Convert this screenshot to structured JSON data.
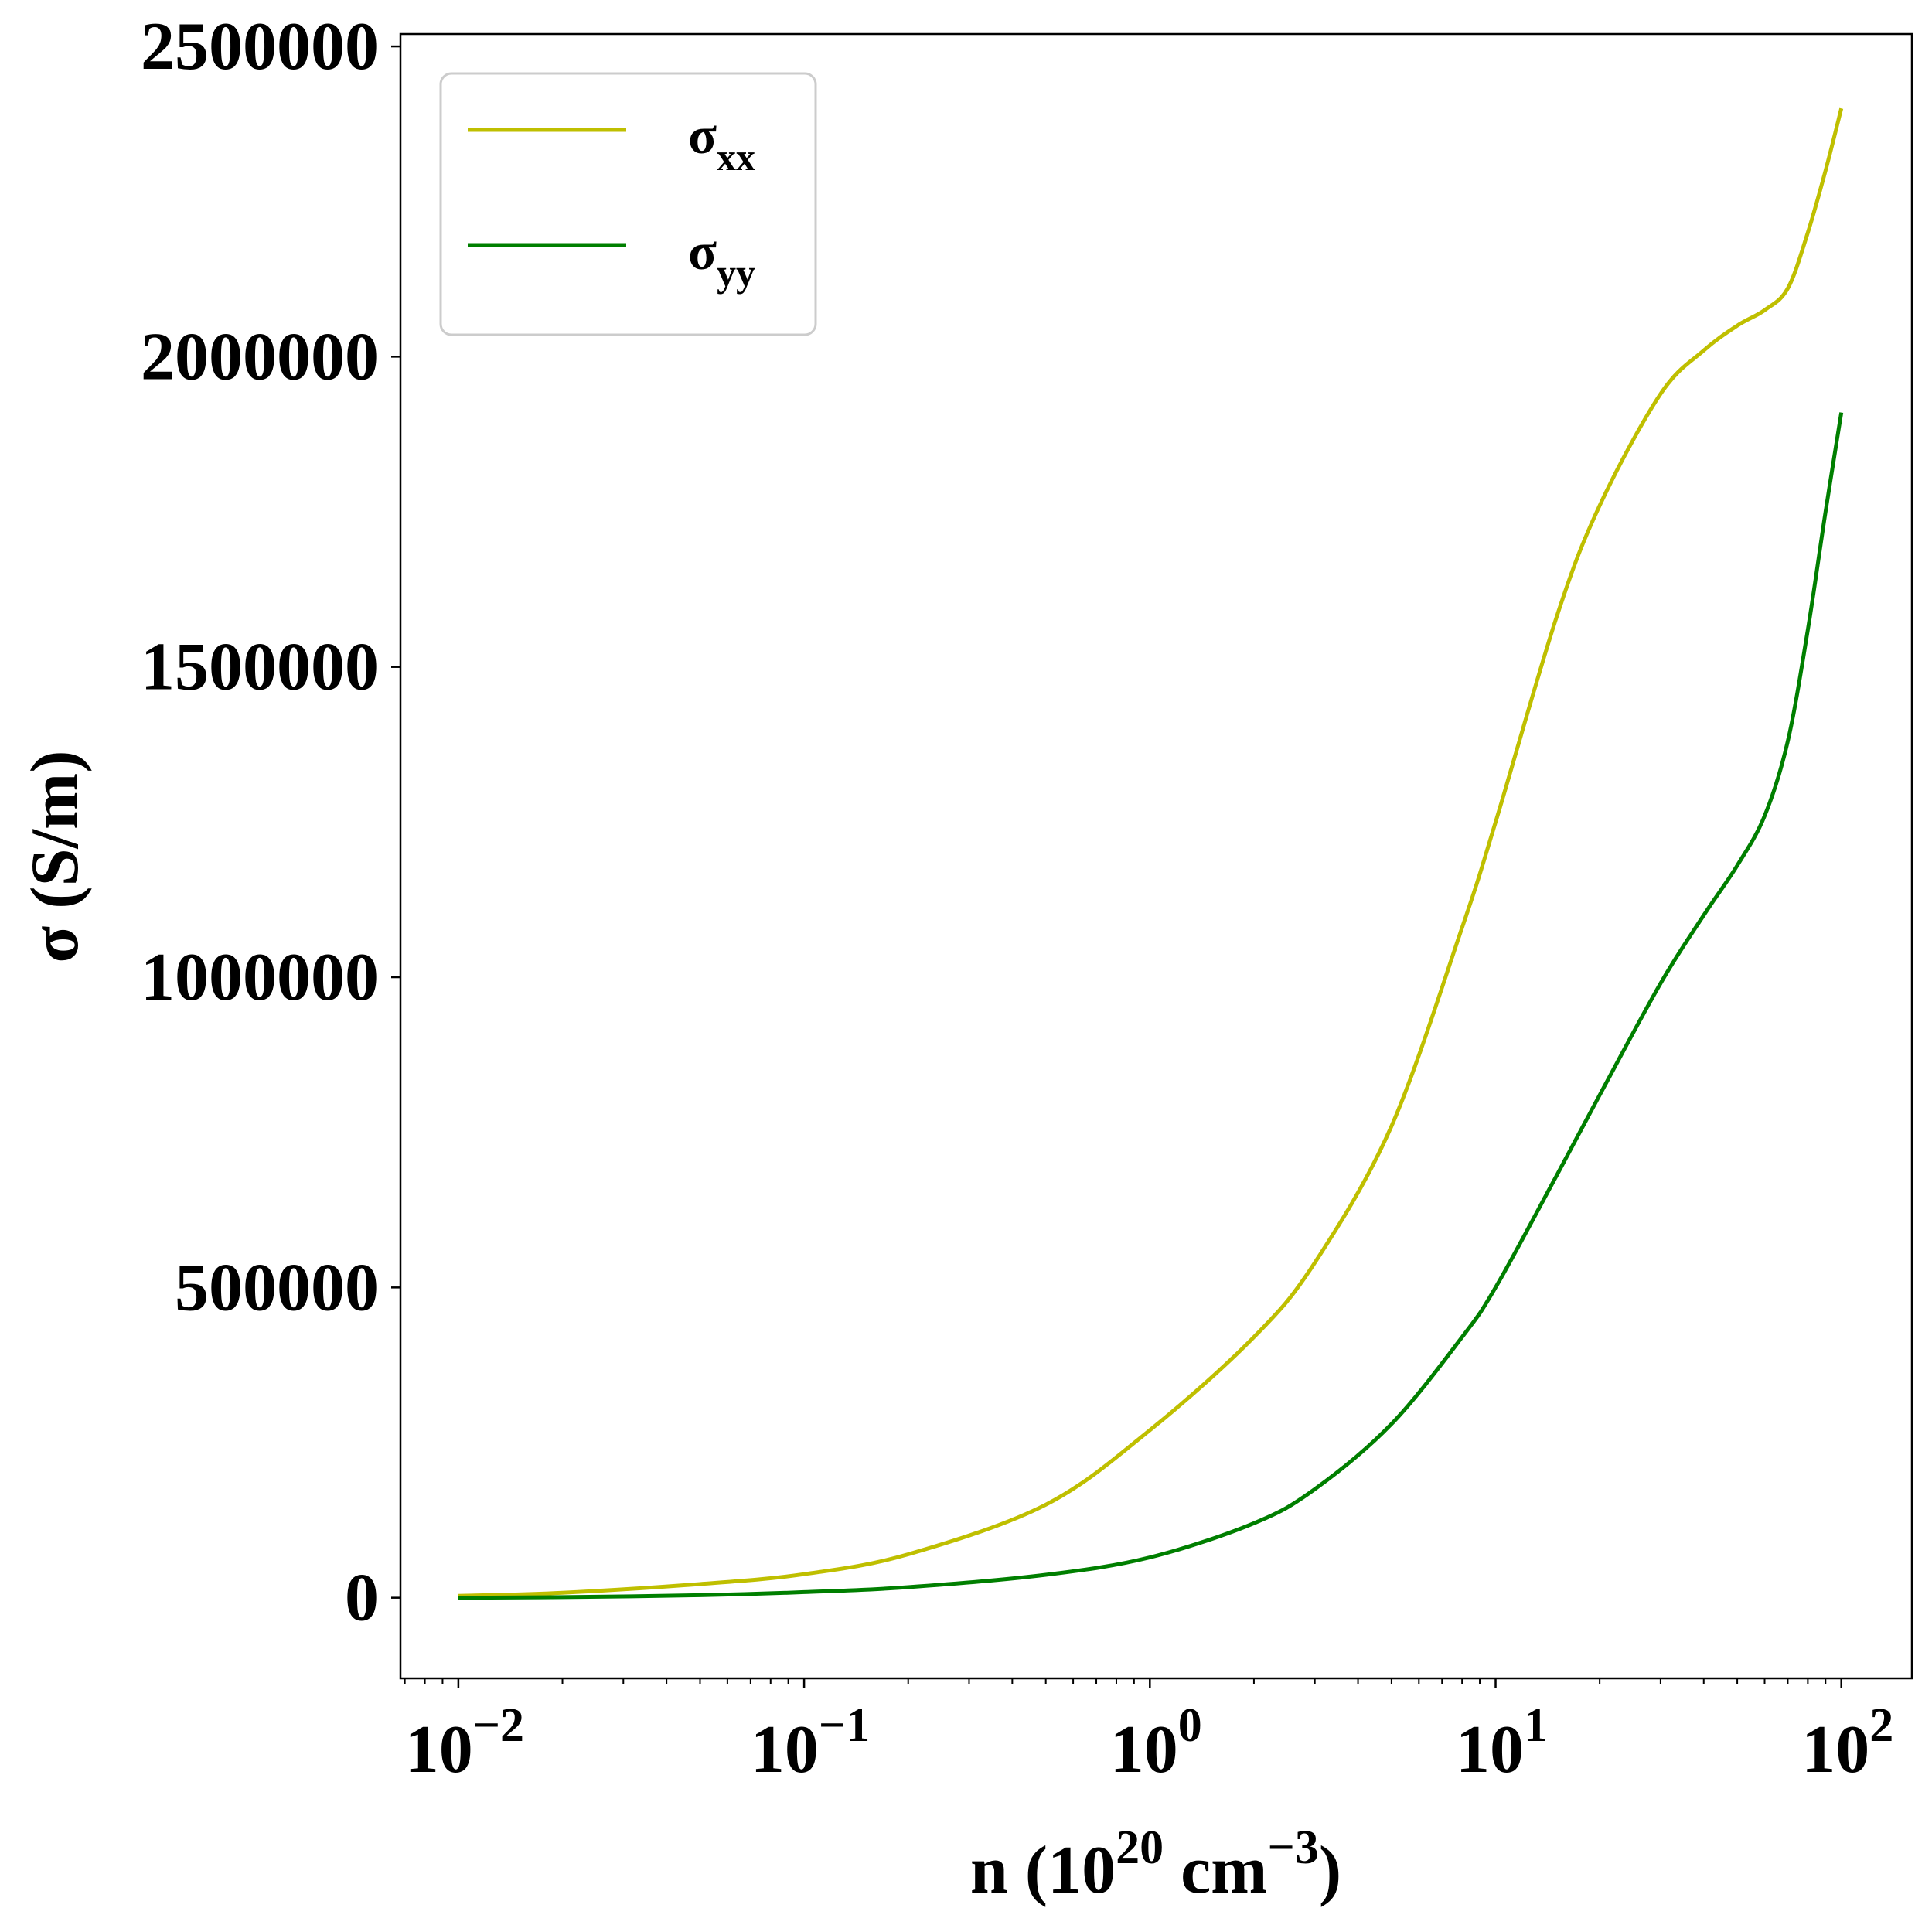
{
  "chart_data": {
    "type": "line",
    "xscale": "log",
    "xlim": [
      0.0068,
      160
    ],
    "ylim": [
      -130000,
      2520000
    ],
    "x_tick_values": [
      0.01,
      0.1,
      1,
      10,
      100
    ],
    "x_tick_labels": [
      {
        "base": "10",
        "exp": "−2"
      },
      {
        "base": "10",
        "exp": "−1"
      },
      {
        "base": "10",
        "exp": "0"
      },
      {
        "base": "10",
        "exp": "1"
      },
      {
        "base": "10",
        "exp": "2"
      }
    ],
    "y_ticks": [
      0,
      500000,
      1000000,
      1500000,
      2000000,
      2500000
    ],
    "y_tick_labels": [
      "0",
      "500000",
      "1000000",
      "1500000",
      "2000000",
      "2500000"
    ],
    "xlabel": {
      "pre": "n (10",
      "exp1": "20",
      "mid": " cm",
      "exp2": "−3",
      "post": ")"
    },
    "ylabel": "σ (S/m)",
    "legend_position": "top-left",
    "series": [
      {
        "name": {
          "base": "σ",
          "sub": "xx"
        },
        "color": "#bfbf00",
        "x": [
          0.01,
          0.02,
          0.05,
          0.1,
          0.2,
          0.5,
          1,
          2,
          3,
          5,
          8,
          10,
          15,
          20,
          30,
          40,
          50,
          60,
          70,
          80,
          90,
          100
        ],
        "y": [
          3000,
          8000,
          22000,
          38000,
          70000,
          150000,
          270000,
          420000,
          540000,
          760000,
          1080000,
          1250000,
          1580000,
          1760000,
          1940000,
          2010000,
          2050000,
          2075000,
          2110000,
          2200000,
          2300000,
          2400000
        ]
      },
      {
        "name": {
          "base": "σ",
          "sub": "yy"
        },
        "color": "#007f00",
        "x": [
          0.01,
          0.02,
          0.05,
          0.1,
          0.2,
          0.5,
          1,
          2,
          3,
          5,
          8,
          10,
          15,
          20,
          30,
          40,
          50,
          60,
          70,
          80,
          90,
          100
        ],
        "y": [
          0,
          1000,
          4000,
          9000,
          17000,
          37000,
          65000,
          120000,
          175000,
          280000,
          420000,
          500000,
          680000,
          810000,
          990000,
          1100000,
          1180000,
          1260000,
          1380000,
          1560000,
          1750000,
          1910000
        ]
      }
    ]
  }
}
